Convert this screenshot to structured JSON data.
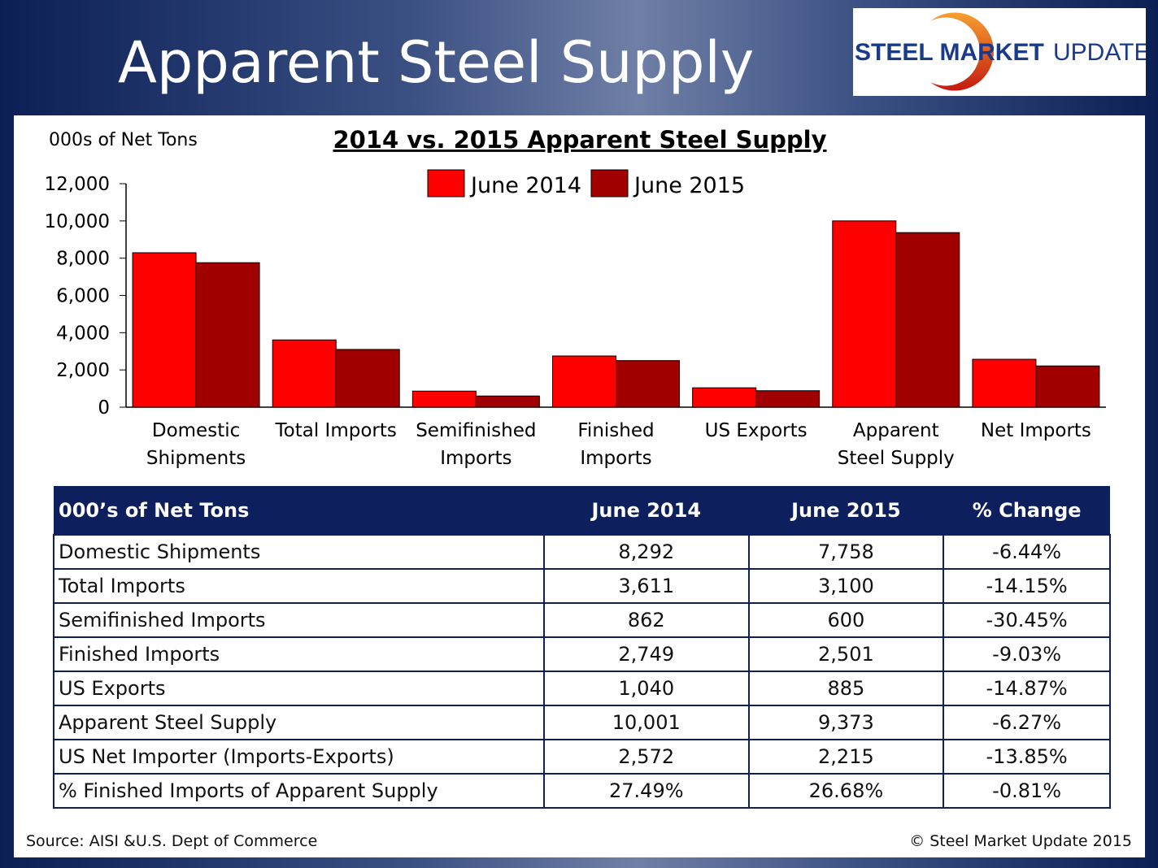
{
  "header": {
    "title": "Apparent Steel Supply",
    "logo_text": "STEEL MARKET UPDATE"
  },
  "chart_data": {
    "type": "bar",
    "title": "2014 vs. 2015 Apparent Steel Supply",
    "ylabel": "000s of Net Tons",
    "ylim": [
      0,
      12000
    ],
    "yticks": [
      "0",
      "2,000",
      "4,000",
      "6,000",
      "8,000",
      "10,000",
      "12,000"
    ],
    "categories": [
      [
        "Domestic",
        "Shipments"
      ],
      [
        "Total Imports"
      ],
      [
        "Semifinished",
        "Imports"
      ],
      [
        "Finished",
        "Imports"
      ],
      [
        "US Exports"
      ],
      [
        "Apparent",
        "Steel Supply"
      ],
      [
        "Net Imports"
      ]
    ],
    "series": [
      {
        "name": "June 2014",
        "color": "#ff0000",
        "values": [
          8292,
          3611,
          862,
          2749,
          1040,
          10001,
          2572
        ]
      },
      {
        "name": "June 2015",
        "color": "#a00000",
        "values": [
          7758,
          3100,
          600,
          2501,
          885,
          9373,
          2215
        ]
      }
    ],
    "legend": "top-center",
    "grid": false
  },
  "table": {
    "headers": [
      "000’s of Net Tons",
      "June 2014",
      "June 2015",
      "% Change"
    ],
    "rows": [
      [
        "Domestic Shipments",
        "8,292",
        "7,758",
        "-6.44%"
      ],
      [
        "Total Imports",
        "3,611",
        "3,100",
        "-14.15%"
      ],
      [
        "Semifinished Imports",
        "862",
        "600",
        "-30.45%"
      ],
      [
        "Finished Imports",
        "2,749",
        "2,501",
        "-9.03%"
      ],
      [
        "US Exports",
        "1,040",
        "885",
        "-14.87%"
      ],
      [
        "Apparent Steel Supply",
        "10,001",
        "9,373",
        "-6.27%"
      ],
      [
        "US Net Importer (Imports-Exports)",
        "2,572",
        "2,215",
        "-13.85%"
      ],
      [
        "% Finished Imports of Apparent Supply",
        "27.49%",
        "26.68%",
        "-0.81%"
      ]
    ]
  },
  "footer": {
    "source": "Source:  AISI &U.S. Dept of Commerce",
    "copyright": "©    Steel Market Update 2015"
  }
}
